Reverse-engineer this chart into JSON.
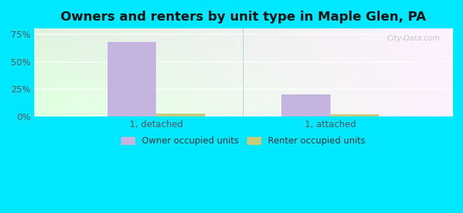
{
  "title": "Owners and renters by unit type in Maple Glen, PA",
  "categories": [
    "1, detached",
    "1, attached"
  ],
  "owner_values": [
    68,
    20
  ],
  "renter_values": [
    3.0,
    2.0
  ],
  "owner_color": "#c5b3e0",
  "renter_color": "#c8cc7a",
  "ylim": [
    0,
    80
  ],
  "yticks": [
    0,
    25,
    50,
    75
  ],
  "ytick_labels": [
    "0%",
    "25%",
    "50%",
    "75%"
  ],
  "bar_width": 0.28,
  "outer_bg": "#00e8ff",
  "plot_bg_left": "#d8efd8",
  "plot_bg_right": "#f0faf0",
  "watermark": "City-Data.com",
  "legend_labels": [
    "Owner occupied units",
    "Renter occupied units"
  ],
  "title_fontsize": 13,
  "axis_label_fontsize": 9,
  "legend_fontsize": 9,
  "grid_color": "#d0e8d0",
  "divider_color": "#88bbbb"
}
